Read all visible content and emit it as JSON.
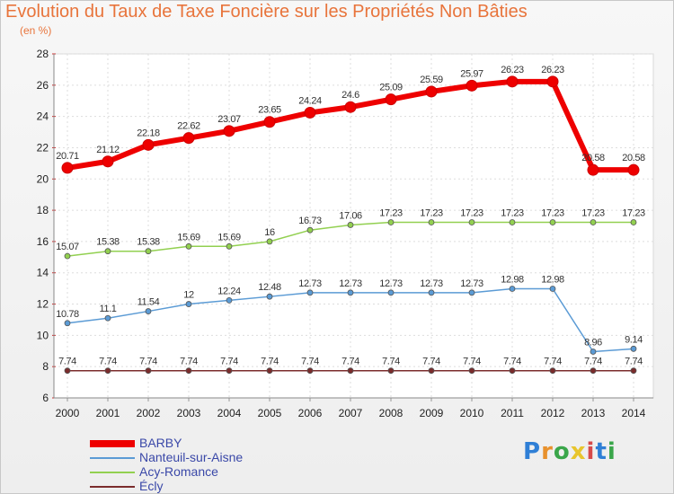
{
  "chart_data": {
    "type": "line",
    "title": "Evolution du Taux de Taxe Foncière sur les Propriétés Non Bâties",
    "subtitle": "(en %)",
    "ylim": [
      6,
      28
    ],
    "yticks": [
      6,
      8,
      10,
      12,
      14,
      16,
      18,
      20,
      22,
      24,
      26,
      28
    ],
    "categories": [
      "2000",
      "2001",
      "2002",
      "2003",
      "2004",
      "2005",
      "2006",
      "2007",
      "2008",
      "2009",
      "2010",
      "2011",
      "2012",
      "2013",
      "2014"
    ],
    "series": [
      {
        "name": "BARBY",
        "color": "#ee0000",
        "values": [
          20.71,
          21.12,
          22.18,
          22.62,
          23.07,
          23.65,
          24.24,
          24.6,
          25.09,
          25.59,
          25.97,
          26.23,
          26.23,
          20.58,
          20.58
        ],
        "labels": [
          "20.71",
          "21.12",
          "22.18",
          "22.62",
          "23.07",
          "23.65",
          "24.24",
          "24.6",
          "25.09",
          "25.59",
          "25.97",
          "26.23",
          "26.23",
          "20.58",
          "20.58"
        ]
      },
      {
        "name": "Nanteuil-sur-Aisne",
        "color": "#5b9bd5",
        "values": [
          10.78,
          11.1,
          11.54,
          12,
          12.24,
          12.48,
          12.73,
          12.73,
          12.73,
          12.73,
          12.73,
          12.98,
          12.98,
          8.96,
          9.14
        ],
        "labels": [
          "10.78",
          "11.1",
          "11.54",
          "12",
          "12.24",
          "12.48",
          "12.73",
          "12.73",
          "12.73",
          "12.73",
          "12.73",
          "12.98",
          "12.98",
          "8.96",
          "9.14"
        ]
      },
      {
        "name": "Acy-Romance",
        "color": "#92d050",
        "values": [
          15.07,
          15.38,
          15.38,
          15.69,
          15.69,
          16,
          16.73,
          17.06,
          17.23,
          17.23,
          17.23,
          17.23,
          17.23,
          17.23,
          17.23
        ],
        "labels": [
          "15.07",
          "15.38",
          "15.38",
          "15.69",
          "15.69",
          "16",
          "16.73",
          "17.06",
          "17.23",
          "17.23",
          "17.23",
          "17.23",
          "17.23",
          "17.23",
          "17.23"
        ]
      },
      {
        "name": "Écly",
        "color": "#7b2c2c",
        "values": [
          7.74,
          7.74,
          7.74,
          7.74,
          7.74,
          7.74,
          7.74,
          7.74,
          7.74,
          7.74,
          7.74,
          7.74,
          7.74,
          7.74,
          7.74
        ],
        "labels": [
          "7.74",
          "7.74",
          "7.74",
          "7.74",
          "7.74",
          "7.74",
          "7.74",
          "7.74",
          "7.74",
          "7.74",
          "7.74",
          "7.74",
          "7.74",
          "7.74",
          "7.74"
        ]
      }
    ],
    "grid": true,
    "legend": "bottom-left"
  },
  "logo": {
    "letters": [
      "P",
      "r",
      "o",
      "x",
      "i",
      "t",
      "i"
    ],
    "colors": [
      "#2f7fd6",
      "#e8912d",
      "#3aa64a",
      "#e8c52d",
      "#d64a4a",
      "#2f7fd6",
      "#3aa64a"
    ]
  }
}
